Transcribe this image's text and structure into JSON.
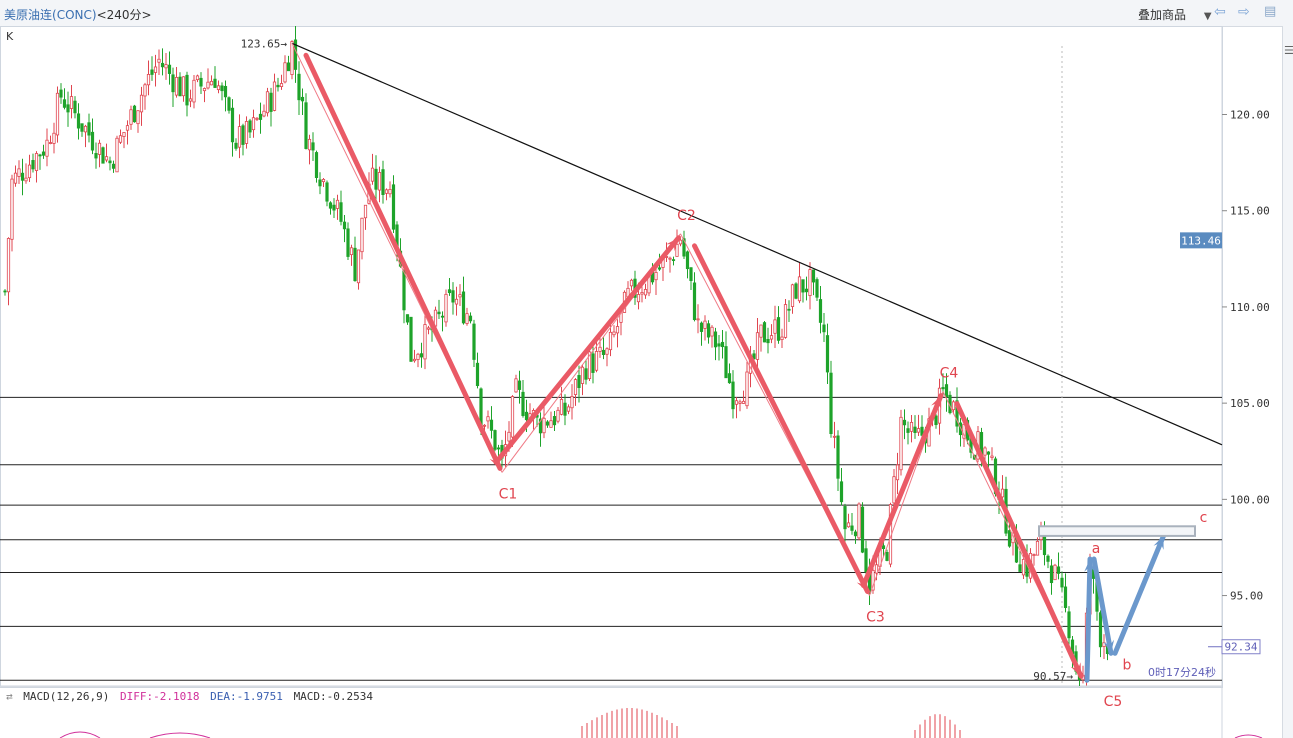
{
  "header": {
    "symbol_name": "美原油连",
    "symbol_code": "(CONC)",
    "period": "<240分>",
    "overlay_label": "叠加商品",
    "overlay_arrow": "▼"
  },
  "chart_label": "K",
  "macd": {
    "name": "MACD(12,26,9)",
    "diff": "DIFF:-2.1018",
    "dea": "DEA:-1.9751",
    "macd": "MACD:-0.2534"
  },
  "countdown": "0时17分24秒",
  "chart_data": {
    "type": "candlestick",
    "y_ticks": [
      95,
      100,
      105,
      110,
      115,
      120
    ],
    "y_tick_labels": [
      "95.00",
      "100.00",
      "105.00",
      "110.00",
      "115.00",
      "120.00"
    ],
    "ylim": [
      90.3,
      124.6
    ],
    "current_price": 113.46,
    "current_price_label": "113.46",
    "last_price": 92.34,
    "last_price_label": "92.34",
    "high_label": "123.65",
    "low_label": "90.57",
    "horizontal_levels": [
      105.3,
      101.8,
      99.7,
      97.9,
      96.2,
      93.4,
      90.6
    ],
    "trendline": [
      {
        "bar": 82,
        "price": 123.7
      },
      {
        "bar": 366,
        "price": 101.4
      }
    ],
    "waves": [
      {
        "label": "C1",
        "bar": 142,
        "price": 101.4
      },
      {
        "label": "C2",
        "bar": 193,
        "price": 113.8
      },
      {
        "label": "C3",
        "bar": 247,
        "price": 95.0
      },
      {
        "label": "C4",
        "bar": 268,
        "price": 105.6
      },
      {
        "label": "C5",
        "bar": 308,
        "price": 90.6
      }
    ],
    "projection": [
      {
        "label": "a",
        "bar": 310,
        "price": 96.9
      },
      {
        "label": "b",
        "bar": 316,
        "price": 92.0
      },
      {
        "label": "c",
        "bar": 331,
        "price": 98.1
      }
    ],
    "target_zone": [
      98.1,
      98.6
    ],
    "path_points": [
      [
        0,
        110.8
      ],
      [
        2,
        116.5
      ],
      [
        12,
        118.5
      ],
      [
        16,
        121.0
      ],
      [
        22,
        119.5
      ],
      [
        30,
        117.5
      ],
      [
        40,
        121.5
      ],
      [
        44,
        122.8
      ],
      [
        52,
        121.0
      ],
      [
        60,
        122.0
      ],
      [
        66,
        118.6
      ],
      [
        70,
        119.0
      ],
      [
        78,
        121.5
      ],
      [
        82,
        123.6
      ],
      [
        86,
        119.0
      ],
      [
        90,
        117.0
      ],
      [
        96,
        114.5
      ],
      [
        100,
        112.0
      ],
      [
        104,
        116.5
      ],
      [
        110,
        116.3
      ],
      [
        116,
        107.5
      ],
      [
        122,
        108.8
      ],
      [
        128,
        110.5
      ],
      [
        133,
        109.5
      ],
      [
        136,
        104.5
      ],
      [
        140,
        103.0
      ],
      [
        142,
        101.8
      ],
      [
        146,
        105.5
      ],
      [
        152,
        104.0
      ],
      [
        160,
        104.5
      ],
      [
        166,
        107.0
      ],
      [
        172,
        107.5
      ],
      [
        178,
        110.5
      ],
      [
        184,
        111.5
      ],
      [
        190,
        112.5
      ],
      [
        193,
        113.6
      ],
      [
        198,
        109.0
      ],
      [
        204,
        108.0
      ],
      [
        208,
        105.5
      ],
      [
        212,
        106.0
      ],
      [
        216,
        108.5
      ],
      [
        222,
        109.0
      ],
      [
        226,
        111.0
      ],
      [
        230,
        111.2
      ],
      [
        234,
        108.5
      ],
      [
        236,
        104.0
      ],
      [
        240,
        98.5
      ],
      [
        244,
        99.0
      ],
      [
        247,
        95.6
      ],
      [
        252,
        97.5
      ],
      [
        256,
        104.0
      ],
      [
        260,
        103.0
      ],
      [
        265,
        104.0
      ],
      [
        268,
        105.5
      ],
      [
        272,
        104.5
      ],
      [
        276,
        103.0
      ],
      [
        280,
        102.5
      ],
      [
        284,
        100.5
      ],
      [
        288,
        97.5
      ],
      [
        292,
        96.5
      ],
      [
        296,
        97.8
      ],
      [
        300,
        96.0
      ],
      [
        304,
        93.5
      ],
      [
        306,
        91.2
      ],
      [
        308,
        90.6
      ],
      [
        310,
        96.6
      ],
      [
        313,
        93.0
      ],
      [
        316,
        92.34
      ]
    ]
  }
}
